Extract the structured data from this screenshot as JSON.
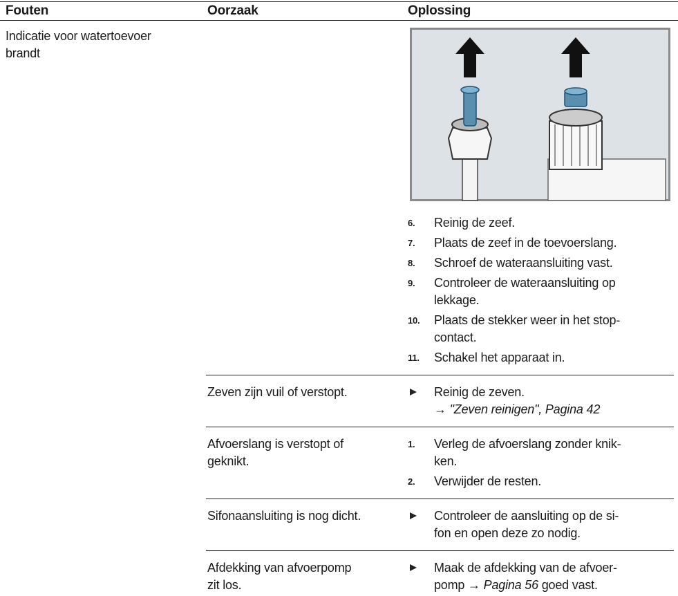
{
  "header": {
    "columns": [
      "Fouten",
      "Oorzaak",
      "Oplossing"
    ]
  },
  "fault": {
    "lines": [
      "Indicatie voor watertoevoer",
      "brandt"
    ]
  },
  "rows": [
    {
      "steps": [
        {
          "number": "6.",
          "lines": [
            "Reinig de zeef."
          ]
        },
        {
          "number": "7.",
          "lines": [
            "Plaats de zeef in de toevoerslang."
          ]
        },
        {
          "number": "8.",
          "lines": [
            "Schroef de wateraansluiting vast."
          ]
        },
        {
          "number": "9.",
          "lines": [
            "Controleer de wateraansluiting op",
            "lekkage."
          ]
        },
        {
          "number": "10.",
          "lines": [
            "Plaats de stekker weer in het stop-",
            "contact."
          ]
        },
        {
          "number": "11.",
          "lines": [
            "Schakel het apparaat in."
          ]
        }
      ]
    },
    {
      "cause": [
        "Zeven zijn vuil of verstopt."
      ],
      "steps": [
        {
          "lines": [
            "Reinig de zeven.",
            [
              {
                "text": "→ "
              },
              {
                "text": "\"Zeven reinigen\", Pagina 42",
                "italic": true
              }
            ]
          ]
        }
      ]
    },
    {
      "cause": [
        "Afvoerslang is verstopt of",
        "geknikt."
      ],
      "steps": [
        {
          "number": "1.",
          "lines": [
            "Verleg de afvoerslang zonder knik-",
            "ken."
          ]
        },
        {
          "number": "2.",
          "lines": [
            "Verwijder de resten."
          ]
        }
      ]
    },
    {
      "cause": [
        "Sifonaansluiting is nog dicht."
      ],
      "steps": [
        {
          "lines": [
            "Controleer de aansluiting op de si-",
            "fon en open deze zo nodig."
          ]
        }
      ]
    },
    {
      "cause": [
        "Afdekking van afvoerpomp",
        "zit los."
      ],
      "steps": [
        {
          "lines": [
            "Maak de afdekking van de afvoer-",
            [
              {
                "text": "pomp → "
              },
              {
                "text": "Pagina 56",
                "italic": true
              },
              {
                "text": " goed vast."
              }
            ]
          ]
        }
      ]
    }
  ]
}
